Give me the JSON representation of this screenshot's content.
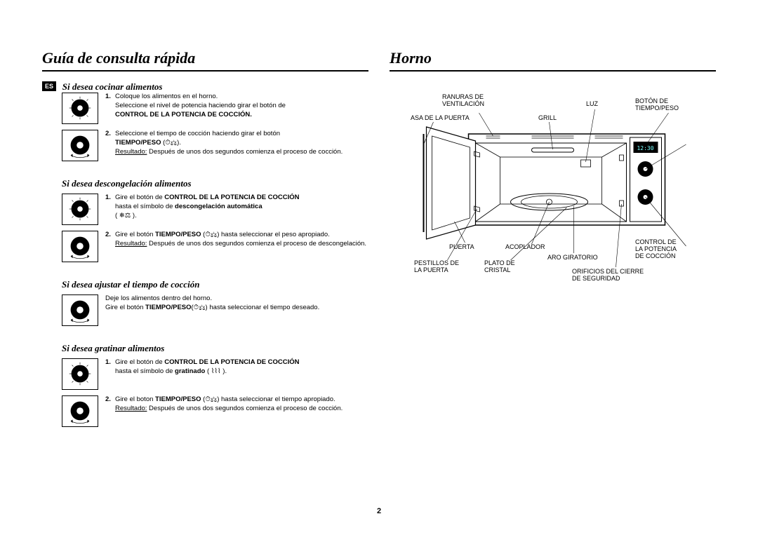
{
  "left": {
    "heading": "Guía de consulta rápida",
    "lang_badge": "ES",
    "sections": [
      {
        "title": "Si desea cocinar alimentos",
        "steps": [
          {
            "n": "1.",
            "dial": "power",
            "lines": [
              "Coloque los alimentos en el horno.",
              "Seleccione el nivel de potencia haciendo girar el botón de"
            ],
            "bold_tail": "CONTROL DE LA POTENCIA DE COCCIÓN."
          },
          {
            "n": "2.",
            "dial": "timer",
            "lines": [
              "Seleccione el tiempo de cocción haciendo girar el botón"
            ],
            "bold_head": "TIEMPO/PESO",
            "sym": " (⏱⚖).",
            "result_label": "Resultado:",
            "result": " Después de unos dos segundos comienza el proceso de cocción."
          }
        ]
      },
      {
        "title": "Si desea descongelación alimentos",
        "steps": [
          {
            "n": "1.",
            "dial": "power",
            "pre": "Gire el botón de ",
            "bold1": "CONTROL DE LA POTENCIA DE COCCIÓN",
            "mid": " hasta el símbolo de ",
            "bold2": "descongelación automática",
            "tail": "( ❄⚖ )."
          },
          {
            "n": "2.",
            "dial": "timer",
            "pre": "Gire el botón ",
            "bold1": "TIEMPO/PESO",
            "sym": " (⏱⚖)",
            "mid": " hasta seleccionar el peso apropiado.",
            "result_label": "Resultado:",
            "result": " Después de unos dos segundos comienza el proceso de descongelación."
          }
        ]
      },
      {
        "title": "Si desea ajustar el tiempo de cocción",
        "steps": [
          {
            "n": "",
            "dial": "timer",
            "line1": "Deje los alimentos dentro del horno.",
            "pre": "Gire el botón ",
            "bold1": "TIEMPO/PESO",
            "sym": "(⏱⚖)",
            "mid": " hasta seleccionar el tiempo deseado."
          }
        ]
      },
      {
        "title": "Si desea gratinar alimentos",
        "steps": [
          {
            "n": "1.",
            "dial": "power",
            "pre": "Gire el botón de ",
            "bold1": "CONTROL DE LA POTENCIA DE COCCIÓN",
            "mid": " hasta el símbolo de ",
            "bold2": "gratinado",
            "tail": " ( ⌇⌇⌇ )."
          },
          {
            "n": "2.",
            "dial": "timer",
            "pre": "Gire el boton ",
            "bold1": "TIEMPO/PESO",
            "sym": " (⏱⚖)",
            "mid": " hasta seleccionar el tiempo apropiado.",
            "result_label": "Resultado:",
            "result": " Después de unos dos segundos comienza el proceso de cocción."
          }
        ]
      }
    ]
  },
  "right": {
    "heading": "Horno",
    "labels": {
      "ranuras": "RANURAS DE\nVENTILACIÓN",
      "luz": "LUZ",
      "boton": "BOTÓN DE\nTIEMPO/PESO",
      "asa": "ASA DE LA PUERTA",
      "grill": "GRILL",
      "puerta": "PUERTA",
      "acoplador": "ACOPLADOR",
      "control": "CONTROL DE\nLA POTENCIA\nDE COCCIÓN",
      "pestillos": "PESTILLOS DE\nLA PUERTA",
      "plato": "PLATO DE\nCRISTAL",
      "aro": "ARO GIRATORIO",
      "orificios": "ORIFICIOS DEL CIERRE\nDE SEGURIDAD"
    }
  },
  "page_number": "2"
}
